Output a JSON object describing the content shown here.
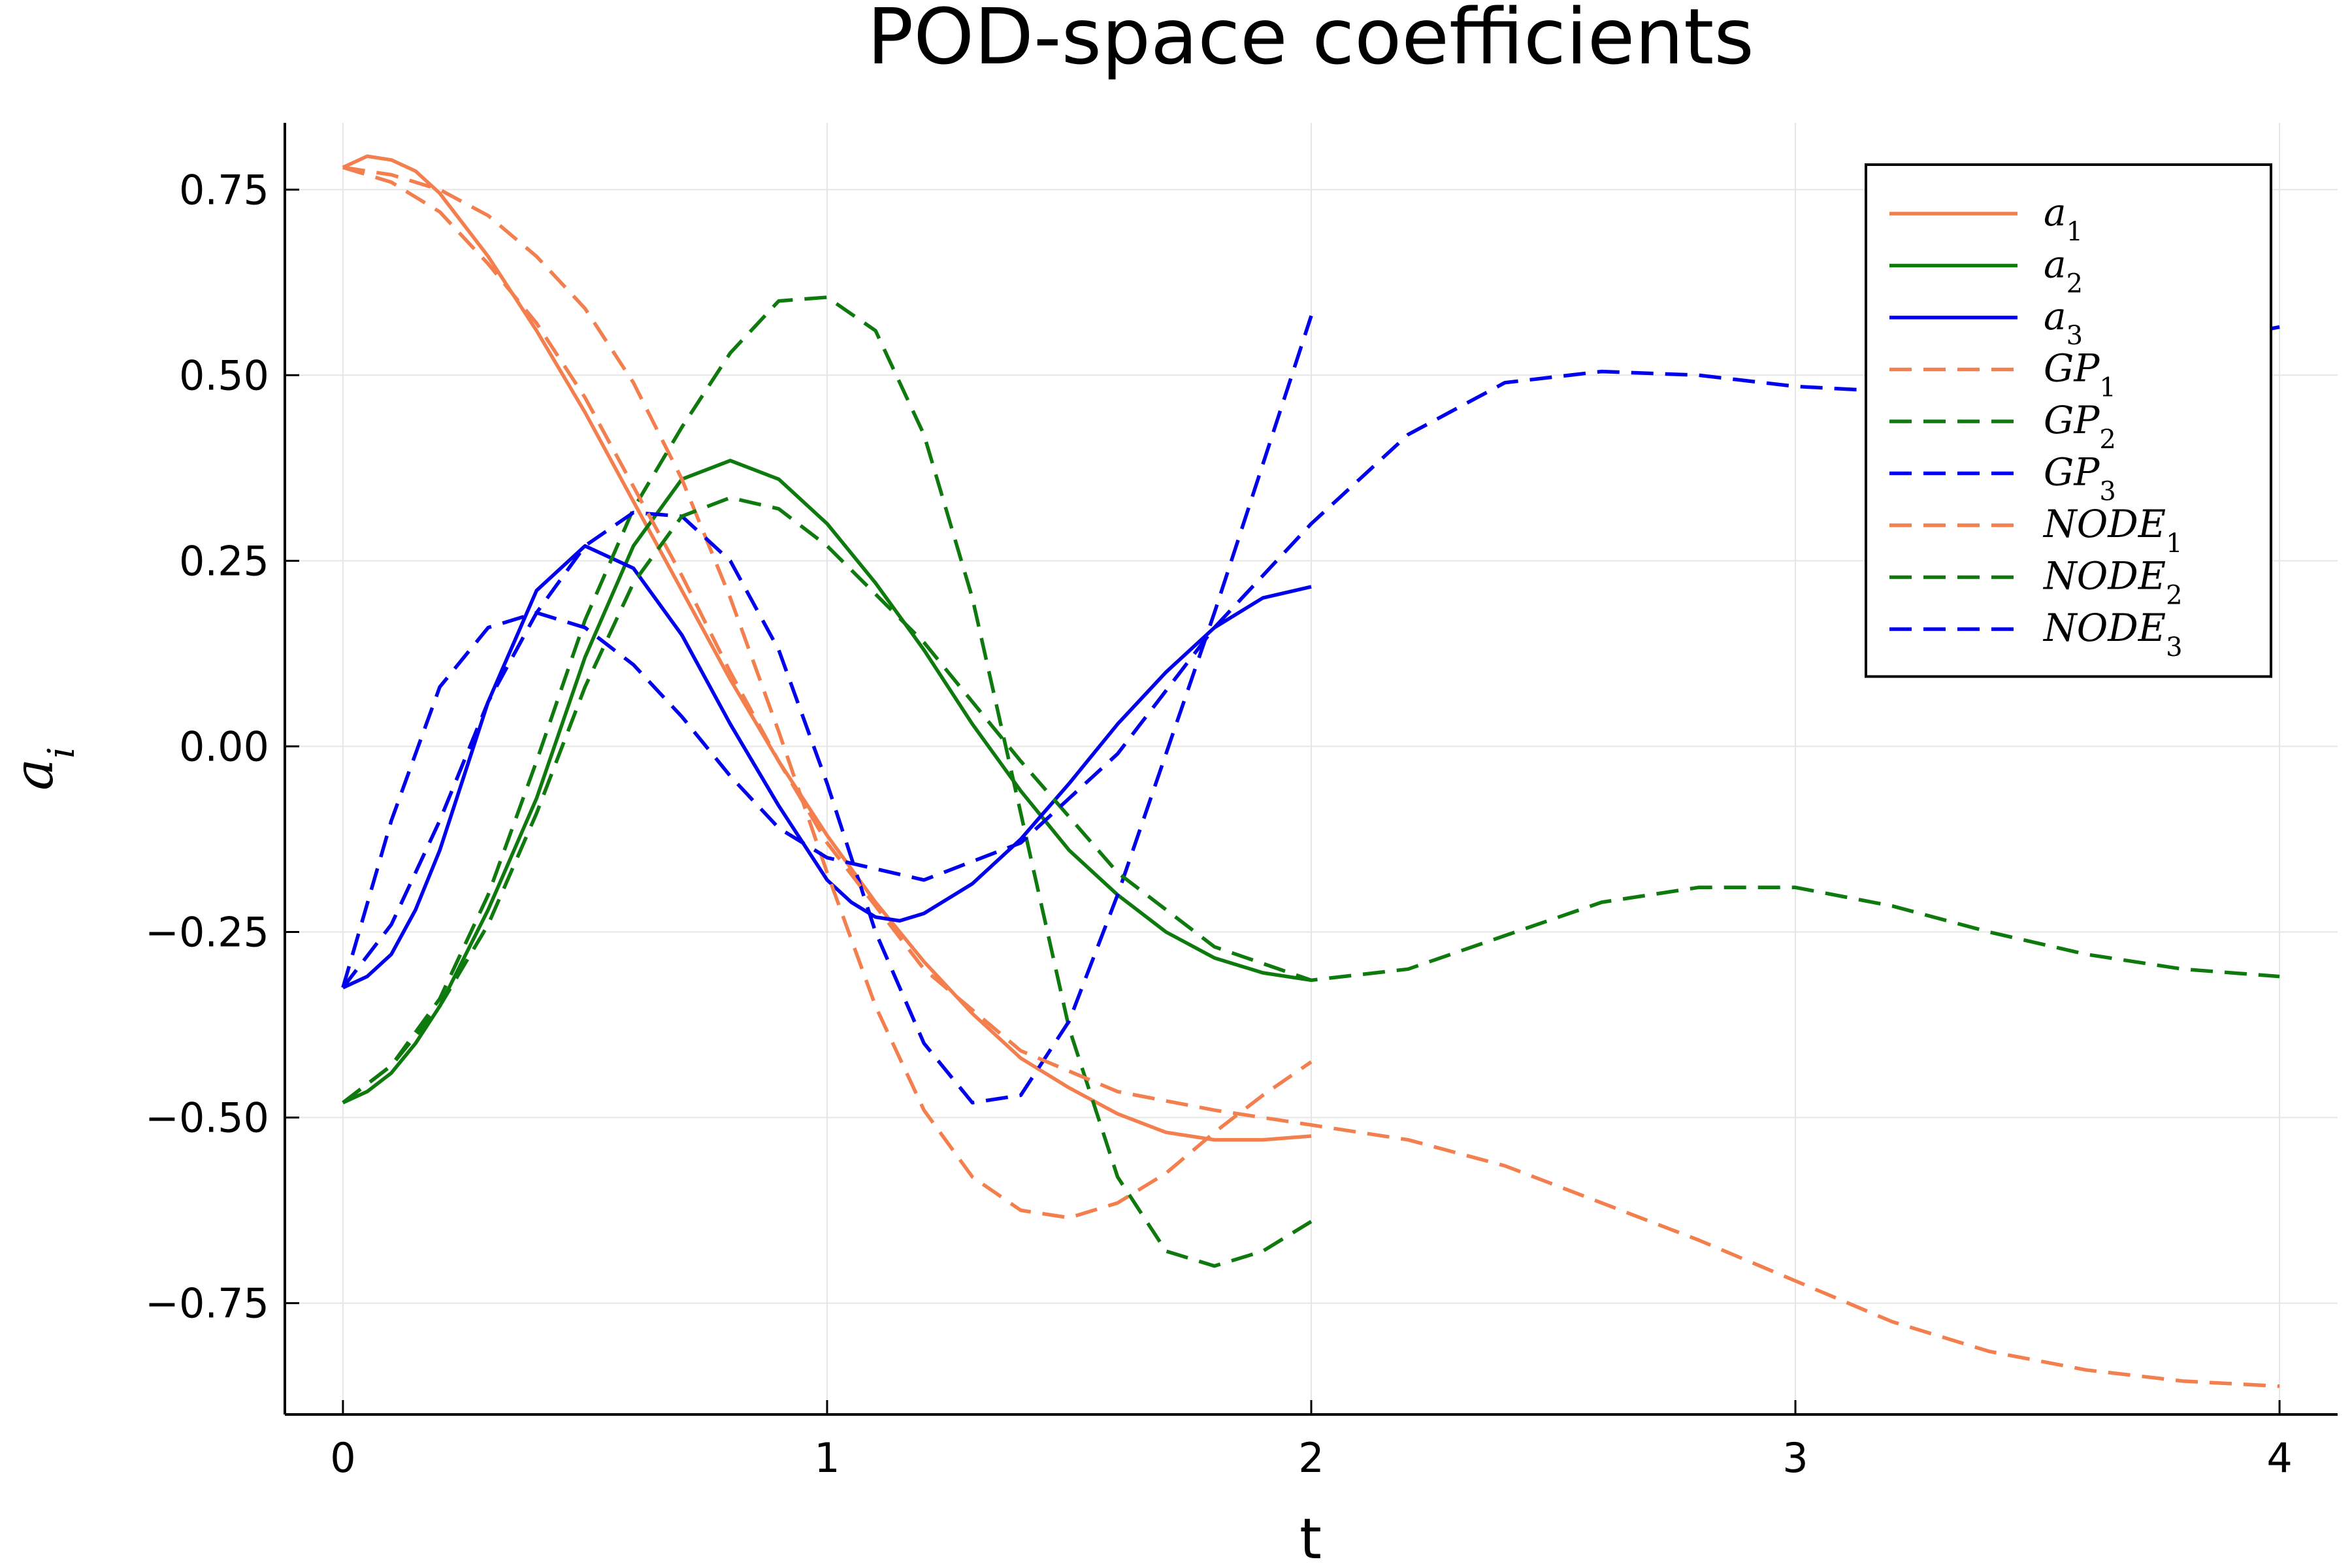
{
  "chart_data": {
    "type": "line",
    "title": "POD-space coefficients",
    "xlabel": "t",
    "ylabel": "a_i",
    "xlim": [
      -0.12,
      4.12
    ],
    "ylim": [
      -0.9,
      0.84
    ],
    "xticks": [
      0,
      1,
      2,
      3,
      4
    ],
    "xtick_labels": [
      "0",
      "1",
      "2",
      "3",
      "4"
    ],
    "yticks": [
      -0.75,
      -0.5,
      -0.25,
      0,
      0.25,
      0.5,
      0.75
    ],
    "ytick_labels": [
      "−0.75",
      "−0.50",
      "−0.25",
      "0.00",
      "0.25",
      "0.50",
      "0.75"
    ],
    "grid": true,
    "legend_position": "top-right",
    "colors": {
      "orange": "#f47f4e",
      "green": "#0e7a0d",
      "blue": "#0000ee"
    },
    "series": [
      {
        "name": "a",
        "sub": "1",
        "color": "#f47f4e",
        "dashed": false,
        "x": [
          0,
          0.05,
          0.1,
          0.15,
          0.2,
          0.3,
          0.4,
          0.5,
          0.6,
          0.7,
          0.8,
          0.9,
          1.0,
          1.1,
          1.2,
          1.3,
          1.4,
          1.5,
          1.6,
          1.7,
          1.8,
          1.9,
          2.0
        ],
        "y": [
          0.78,
          0.795,
          0.79,
          0.775,
          0.745,
          0.66,
          0.56,
          0.45,
          0.33,
          0.21,
          0.09,
          -0.02,
          -0.12,
          -0.21,
          -0.29,
          -0.36,
          -0.42,
          -0.46,
          -0.495,
          -0.52,
          -0.53,
          -0.53,
          -0.525
        ]
      },
      {
        "name": "a",
        "sub": "2",
        "color": "#0e7a0d",
        "dashed": false,
        "x": [
          0,
          0.05,
          0.1,
          0.15,
          0.2,
          0.3,
          0.4,
          0.5,
          0.6,
          0.7,
          0.8,
          0.9,
          1.0,
          1.1,
          1.2,
          1.3,
          1.4,
          1.5,
          1.6,
          1.7,
          1.8,
          1.9,
          2.0
        ],
        "y": [
          -0.48,
          -0.465,
          -0.44,
          -0.4,
          -0.35,
          -0.22,
          -0.07,
          0.12,
          0.27,
          0.36,
          0.385,
          0.36,
          0.3,
          0.22,
          0.13,
          0.03,
          -0.06,
          -0.14,
          -0.2,
          -0.25,
          -0.285,
          -0.305,
          -0.315
        ]
      },
      {
        "name": "a",
        "sub": "3",
        "color": "#0000ee",
        "dashed": false,
        "x": [
          0,
          0.05,
          0.1,
          0.15,
          0.2,
          0.3,
          0.4,
          0.5,
          0.6,
          0.7,
          0.8,
          0.9,
          1.0,
          1.05,
          1.1,
          1.15,
          1.2,
          1.3,
          1.4,
          1.5,
          1.6,
          1.7,
          1.8,
          1.9,
          2.0
        ],
        "y": [
          -0.325,
          -0.31,
          -0.28,
          -0.22,
          -0.14,
          0.06,
          0.21,
          0.27,
          0.24,
          0.15,
          0.03,
          -0.08,
          -0.18,
          -0.21,
          -0.23,
          -0.235,
          -0.225,
          -0.185,
          -0.125,
          -0.05,
          0.03,
          0.1,
          0.16,
          0.2,
          0.215
        ]
      },
      {
        "name": "GP",
        "sub": "1",
        "color": "#f47f4e",
        "dashed": true,
        "x": [
          0,
          0.1,
          0.2,
          0.3,
          0.4,
          0.5,
          0.6,
          0.7,
          0.8,
          0.9,
          1.0,
          1.1,
          1.2,
          1.3,
          1.4,
          1.5,
          1.6,
          1.7,
          1.8,
          1.9,
          2.0
        ],
        "y": [
          0.78,
          0.77,
          0.75,
          0.715,
          0.66,
          0.59,
          0.49,
          0.36,
          0.2,
          0.02,
          -0.17,
          -0.35,
          -0.49,
          -0.58,
          -0.625,
          -0.635,
          -0.615,
          -0.575,
          -0.52,
          -0.47,
          -0.425
        ]
      },
      {
        "name": "GP",
        "sub": "2",
        "color": "#0e7a0d",
        "dashed": true,
        "x": [
          0,
          0.1,
          0.2,
          0.3,
          0.4,
          0.5,
          0.6,
          0.7,
          0.8,
          0.9,
          1.0,
          1.1,
          1.2,
          1.3,
          1.4,
          1.5,
          1.6,
          1.7,
          1.8,
          1.9,
          2.0
        ],
        "y": [
          -0.48,
          -0.43,
          -0.34,
          -0.2,
          -0.02,
          0.17,
          0.32,
          0.43,
          0.53,
          0.6,
          0.605,
          0.56,
          0.42,
          0.2,
          -0.09,
          -0.38,
          -0.58,
          -0.68,
          -0.7,
          -0.68,
          -0.64
        ]
      },
      {
        "name": "GP",
        "sub": "3",
        "color": "#0000ee",
        "dashed": true,
        "x": [
          0,
          0.1,
          0.2,
          0.3,
          0.4,
          0.5,
          0.6,
          0.7,
          0.8,
          0.9,
          1.0,
          1.1,
          1.2,
          1.3,
          1.4,
          1.5,
          1.6,
          1.7,
          1.8,
          1.9,
          2.0
        ],
        "y": [
          -0.325,
          -0.24,
          -0.1,
          0.06,
          0.18,
          0.27,
          0.315,
          0.31,
          0.25,
          0.13,
          -0.05,
          -0.25,
          -0.4,
          -0.48,
          -0.47,
          -0.37,
          -0.2,
          -0.01,
          0.18,
          0.38,
          0.58
        ]
      },
      {
        "name": "NODE",
        "sub": "1",
        "color": "#f47f4e",
        "dashed": true,
        "x": [
          0,
          0.1,
          0.2,
          0.3,
          0.4,
          0.5,
          0.6,
          0.7,
          0.8,
          0.9,
          1.0,
          1.2,
          1.4,
          1.6,
          1.8,
          2.0,
          2.2,
          2.4,
          2.6,
          2.8,
          3.0,
          3.2,
          3.4,
          3.6,
          3.8,
          4.0
        ],
        "y": [
          0.78,
          0.76,
          0.72,
          0.65,
          0.57,
          0.47,
          0.35,
          0.23,
          0.1,
          -0.02,
          -0.13,
          -0.3,
          -0.41,
          -0.465,
          -0.49,
          -0.51,
          -0.53,
          -0.565,
          -0.615,
          -0.665,
          -0.72,
          -0.775,
          -0.815,
          -0.84,
          -0.855,
          -0.862
        ]
      },
      {
        "name": "NODE",
        "sub": "2",
        "color": "#0e7a0d",
        "dashed": true,
        "x": [
          0,
          0.1,
          0.2,
          0.3,
          0.4,
          0.5,
          0.6,
          0.7,
          0.8,
          0.9,
          1.0,
          1.2,
          1.4,
          1.6,
          1.8,
          2.0,
          2.2,
          2.4,
          2.6,
          2.8,
          3.0,
          3.2,
          3.4,
          3.6,
          3.8,
          4.0
        ],
        "y": [
          -0.48,
          -0.43,
          -0.35,
          -0.24,
          -0.09,
          0.08,
          0.22,
          0.31,
          0.335,
          0.32,
          0.27,
          0.14,
          -0.02,
          -0.17,
          -0.27,
          -0.315,
          -0.3,
          -0.255,
          -0.21,
          -0.19,
          -0.19,
          -0.215,
          -0.25,
          -0.28,
          -0.3,
          -0.31
        ]
      },
      {
        "name": "NODE",
        "sub": "3",
        "color": "#0000ee",
        "dashed": true,
        "x": [
          0,
          0.1,
          0.2,
          0.3,
          0.4,
          0.5,
          0.6,
          0.7,
          0.8,
          0.9,
          1.0,
          1.2,
          1.4,
          1.6,
          1.8,
          2.0,
          2.2,
          2.4,
          2.6,
          2.8,
          3.0,
          3.2,
          3.4,
          3.6,
          3.8,
          4.0
        ],
        "y": [
          -0.325,
          -0.1,
          0.08,
          0.16,
          0.18,
          0.16,
          0.11,
          0.04,
          -0.04,
          -0.11,
          -0.15,
          -0.18,
          -0.13,
          -0.01,
          0.16,
          0.3,
          0.42,
          0.49,
          0.505,
          0.5,
          0.485,
          0.478,
          0.49,
          0.515,
          0.54,
          0.565
        ]
      }
    ]
  }
}
